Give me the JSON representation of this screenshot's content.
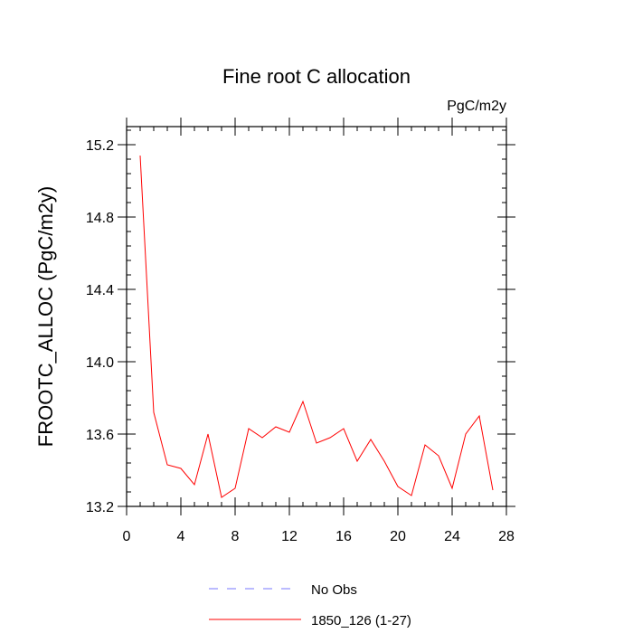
{
  "chart_data": {
    "type": "line",
    "title": "Fine root C allocation",
    "units_label": "PgC/m2y",
    "xlabel": "",
    "ylabel": "FROOTC_ALLOC  (PgC/m2y)",
    "xlim": [
      0,
      28
    ],
    "ylim": [
      13.2,
      15.3
    ],
    "x_major_ticks": [
      0,
      4,
      8,
      12,
      16,
      20,
      24,
      28
    ],
    "x_minor_step": 1,
    "y_major_ticks": [
      13.2,
      13.6,
      14.0,
      14.4,
      14.8,
      15.2
    ],
    "y_major_labels": [
      "13.2",
      "13.6",
      "14.0",
      "14.4",
      "14.8",
      "15.2"
    ],
    "y_minor_step": 0.08,
    "grid": false,
    "series": [
      {
        "name": "1850_126 (1-27)",
        "color": "#ff0000",
        "style": "solid",
        "x": [
          1,
          2,
          3,
          4,
          5,
          6,
          7,
          8,
          9,
          10,
          11,
          12,
          13,
          14,
          15,
          16,
          17,
          18,
          19,
          20,
          21,
          22,
          23,
          24,
          25,
          26,
          27
        ],
        "y": [
          15.14,
          13.72,
          13.43,
          13.41,
          13.32,
          13.6,
          13.25,
          13.3,
          13.63,
          13.58,
          13.64,
          13.61,
          13.78,
          13.55,
          13.58,
          13.63,
          13.45,
          13.57,
          13.45,
          13.31,
          13.26,
          13.54,
          13.48,
          13.3,
          13.6,
          13.7,
          13.29
        ]
      }
    ],
    "legend": {
      "placement": "bottom",
      "entries": [
        {
          "label": "No Obs",
          "color": "#7777ff",
          "style": "dashed"
        },
        {
          "label": "1850_126 (1-27)",
          "color": "#ff0000",
          "style": "solid"
        }
      ]
    }
  }
}
